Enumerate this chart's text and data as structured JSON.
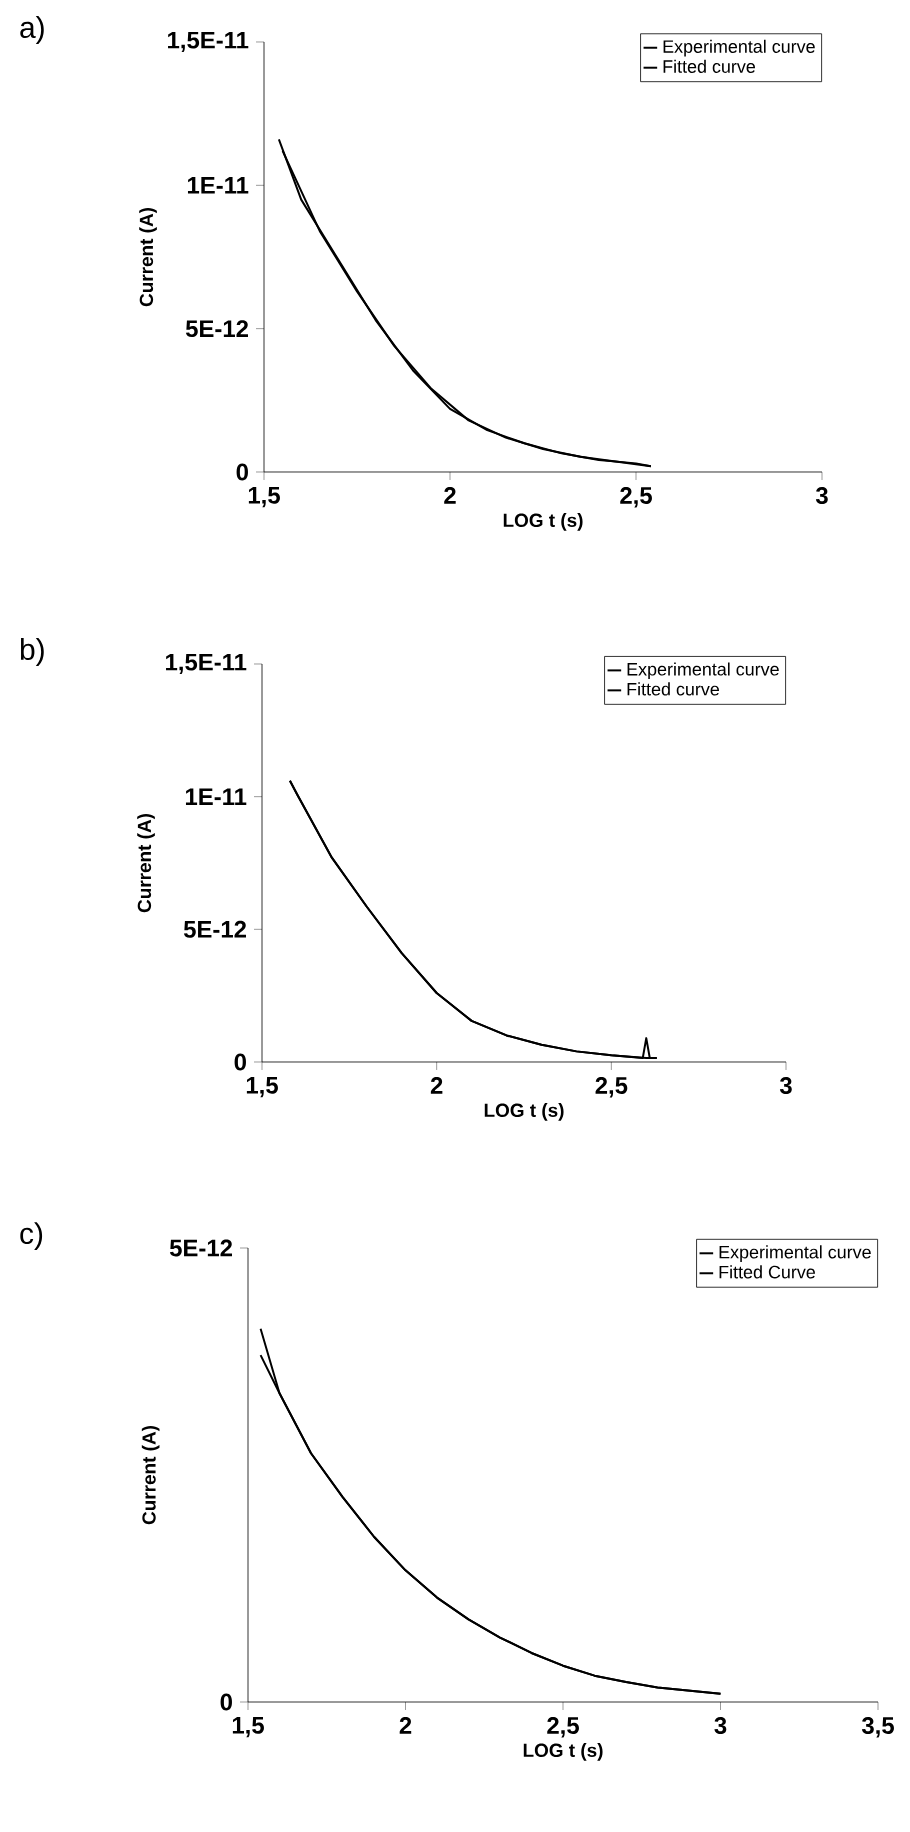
{
  "chart_data": [
    {
      "type": "line",
      "title": "a)",
      "xlabel": "LOG t (s)",
      "ylabel": "Current (A)",
      "xlim": [
        1.5,
        3
      ],
      "xticks": [
        {
          "value": 1.5,
          "label": "1,5"
        },
        2,
        {
          "value": 2.5,
          "label": "2,5"
        },
        3
      ],
      "ylim": [
        0,
        1.5e-11
      ],
      "yticks": [
        0,
        {
          "value": 5e-12,
          "label": "5E-12"
        },
        {
          "value": 1e-11,
          "label": "1E-11"
        },
        {
          "value": 1.5e-11,
          "label": "1,5E-11"
        }
      ],
      "legend": "top right",
      "series": [
        {
          "name": "Experimental curve",
          "color": "#000000",
          "x": [
            1.54,
            1.6,
            1.7,
            1.8,
            1.9,
            2.0,
            2.1,
            2.2,
            2.3,
            2.4,
            2.5,
            2.54
          ],
          "values": [
            1.16e-11,
            9.5e-12,
            7.4e-12,
            5.3e-12,
            3.55e-12,
            2.2e-12,
            1.46e-12,
            1e-12,
            6.5e-13,
            4.2e-13,
            3e-13,
            2e-13
          ]
        },
        {
          "name": "Fitted curve",
          "color": "#000000",
          "x": [
            1.55,
            1.65,
            1.75,
            1.85,
            1.95,
            2.05,
            2.15,
            2.25,
            2.35,
            2.45,
            2.54
          ],
          "values": [
            1.12e-11,
            8.4e-12,
            6.3e-12,
            4.4e-12,
            2.9e-12,
            1.8e-12,
            1.2e-12,
            8e-13,
            5.3e-13,
            3.6e-13,
            2e-13
          ]
        }
      ]
    },
    {
      "type": "line",
      "title": "b)",
      "xlabel": "LOG t (s)",
      "ylabel": "Current (A)",
      "xlim": [
        1.5,
        3
      ],
      "xticks": [
        {
          "value": 1.5,
          "label": "1,5"
        },
        2,
        {
          "value": 2.5,
          "label": "2,5"
        },
        3
      ],
      "ylim": [
        0,
        1.5e-11
      ],
      "yticks": [
        0,
        {
          "value": 5e-12,
          "label": "5E-12"
        },
        {
          "value": 1e-11,
          "label": "1E-11"
        },
        {
          "value": 1.5e-11,
          "label": "1,5E-11"
        }
      ],
      "legend": "top right",
      "series": [
        {
          "name": "Experimental curve",
          "color": "#000000",
          "x": [
            1.58,
            1.6,
            1.7,
            1.8,
            1.9,
            2.0,
            2.1,
            2.2,
            2.3,
            2.4,
            2.5,
            2.59,
            2.6,
            2.61,
            2.63
          ],
          "values": [
            1.06e-11,
            1.01e-11,
            7.7e-12,
            5.85e-12,
            4.1e-12,
            2.6e-12,
            1.55e-12,
            1e-12,
            6.5e-13,
            4e-13,
            2.5e-13,
            1.5e-13,
            9e-13,
            1.5e-13,
            1.5e-13
          ]
        },
        {
          "name": "Fitted curve",
          "color": "#000000",
          "x": [
            1.58,
            1.6,
            1.7,
            1.8,
            1.9,
            2.0,
            2.1,
            2.2,
            2.3,
            2.4,
            2.5,
            2.6,
            2.63
          ],
          "values": [
            1.06e-11,
            1.01e-11,
            7.7e-12,
            5.85e-12,
            4.1e-12,
            2.6e-12,
            1.55e-12,
            1e-12,
            6.5e-13,
            4e-13,
            2.5e-13,
            1.5e-13,
            1.5e-13
          ]
        }
      ]
    },
    {
      "type": "line",
      "title": "c)",
      "xlabel": "LOG t (s)",
      "ylabel": "Current (A)",
      "xlim": [
        1.5,
        3.5
      ],
      "xticks": [
        {
          "value": 1.5,
          "label": "1,5"
        },
        2,
        {
          "value": 2.5,
          "label": "2,5"
        },
        3,
        {
          "value": 3.5,
          "label": "3,5"
        }
      ],
      "ylim": [
        0,
        5e-12
      ],
      "yticks": [
        0,
        {
          "value": 5e-12,
          "label": "5E-12"
        }
      ],
      "legend": "top right",
      "series": [
        {
          "name": "Experimental curve",
          "color": "#000000",
          "x": [
            1.54,
            1.6,
            1.7,
            1.8,
            1.9,
            2.0,
            2.1,
            2.2,
            2.3,
            2.4,
            2.5,
            2.6,
            2.7,
            2.8,
            2.9,
            3.0
          ],
          "values": [
            4.11e-12,
            3.4e-12,
            2.74e-12,
            2.26e-12,
            1.82e-12,
            1.45e-12,
            1.15e-12,
            9.1e-13,
            7.1e-13,
            5.4e-13,
            4e-13,
            2.9e-13,
            2.2e-13,
            1.6e-13,
            1.25e-13,
            9e-14
          ]
        },
        {
          "name": "Fitted Curve",
          "color": "#000000",
          "x": [
            1.54,
            1.6,
            1.7,
            1.8,
            1.9,
            2.0,
            2.1,
            2.2,
            2.3,
            2.4,
            2.5,
            2.6,
            2.7,
            2.8,
            2.9,
            3.0
          ],
          "values": [
            3.82e-12,
            3.4e-12,
            2.74e-12,
            2.26e-12,
            1.82e-12,
            1.45e-12,
            1.15e-12,
            9.1e-13,
            7.1e-13,
            5.4e-13,
            4e-13,
            2.9e-13,
            2.2e-13,
            1.6e-13,
            1.25e-13,
            9e-14
          ]
        }
      ]
    }
  ]
}
